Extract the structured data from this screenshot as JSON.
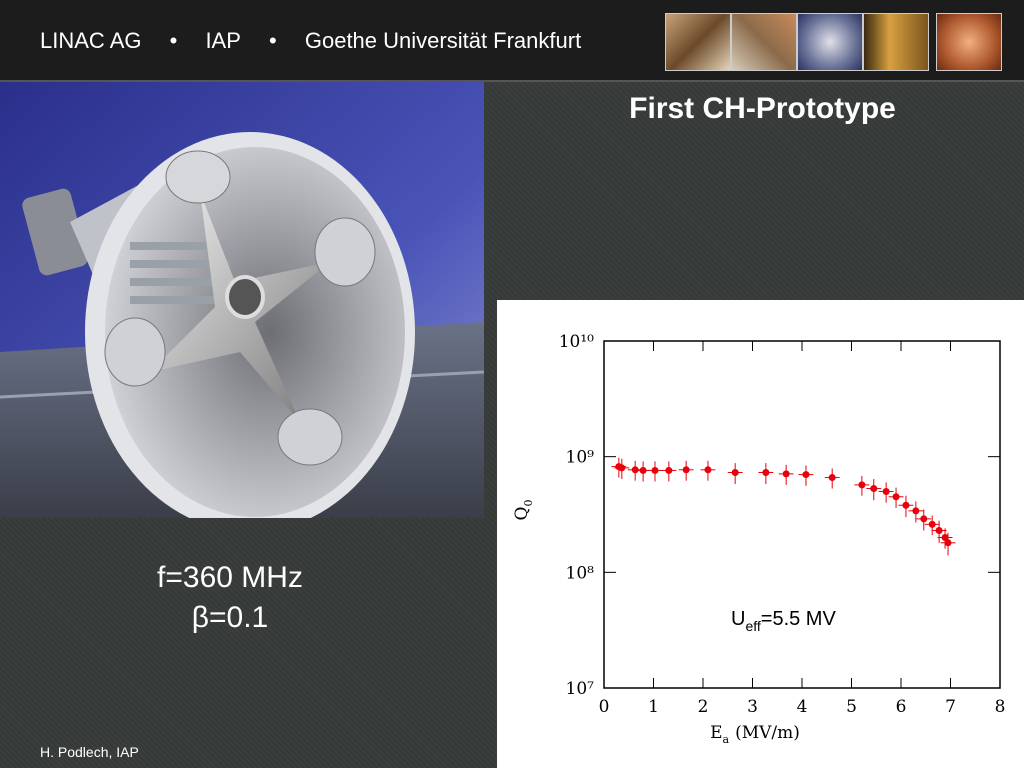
{
  "header": {
    "items": [
      "LINAC AG",
      "•",
      "IAP",
      "•",
      "Goethe Universität Frankfurt"
    ]
  },
  "title": "First CH-Prototype",
  "caption": {
    "lines": [
      "f=360 MHz",
      "β=0.1"
    ]
  },
  "footer": "H. Podlech, IAP",
  "chart_data": {
    "type": "scatter",
    "x_label": {
      "main": "E",
      "sub": "a",
      "unit": "(MV/m)"
    },
    "y_label": {
      "main": "Q",
      "sub": "0"
    },
    "annotation": {
      "main": "U",
      "sub": "eff",
      "rest": "=5.5 MV"
    },
    "x": [
      0.3,
      0.36,
      0.63,
      0.79,
      1.03,
      1.31,
      1.66,
      2.1,
      2.65,
      3.27,
      3.68,
      4.08,
      4.61,
      5.21,
      5.45,
      5.7,
      5.9,
      6.1,
      6.3,
      6.46,
      6.63,
      6.77,
      6.89,
      6.95
    ],
    "series": [
      {
        "color": "#e8000b",
        "values": [
          820000000,
          800000000,
          770000000,
          760000000,
          760000000,
          760000000,
          770000000,
          770000000,
          730000000,
          730000000,
          710000000,
          700000000,
          660000000,
          570000000,
          530000000,
          500000000,
          450000000,
          380000000,
          340000000,
          290000000,
          260000000,
          230000000,
          200000000,
          180000000
        ],
        "yerr": [
          160000000,
          160000000,
          150000000,
          150000000,
          150000000,
          150000000,
          150000000,
          150000000,
          150000000,
          150000000,
          140000000,
          140000000,
          130000000,
          110000000,
          110000000,
          100000000,
          90000000,
          80000000,
          70000000,
          60000000,
          50000000,
          50000000,
          40000000,
          40000000
        ],
        "xerr": [
          0.15,
          0.15,
          0.15,
          0.15,
          0.15,
          0.15,
          0.15,
          0.15,
          0.15,
          0.15,
          0.15,
          0.15,
          0.15,
          0.15,
          0.15,
          0.15,
          0.15,
          0.15,
          0.15,
          0.15,
          0.15,
          0.15,
          0.15,
          0.15
        ]
      }
    ],
    "xlim": [
      0,
      8
    ],
    "xticks": [
      0,
      1,
      2,
      3,
      4,
      5,
      6,
      7,
      8
    ],
    "ylim": [
      10000000,
      10000000000
    ],
    "log_y": true,
    "yticks": [
      {
        "value": 10000000,
        "label": "10⁷"
      },
      {
        "value": 100000000,
        "label": "10⁸"
      },
      {
        "value": 1000000000,
        "label": "10⁹"
      },
      {
        "value": 10000000000,
        "label": "10¹⁰"
      }
    ]
  }
}
